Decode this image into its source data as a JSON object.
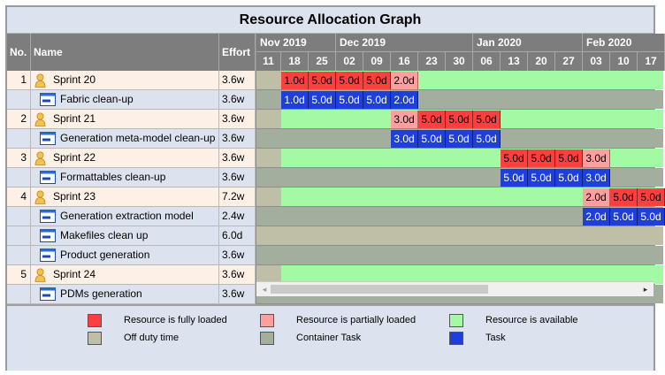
{
  "title": "Resource Allocation Graph",
  "columns": {
    "no": "No.",
    "name": "Name",
    "effort": "Effort"
  },
  "timeline": {
    "months": [
      {
        "label": "Nov 2019",
        "span": 3
      },
      {
        "label": "Dec 2019",
        "span": 5
      },
      {
        "label": "Jan 2020",
        "span": 4
      },
      {
        "label": "Feb 2020",
        "span": 3
      }
    ],
    "weeks": [
      "11",
      "18",
      "25",
      "02",
      "09",
      "16",
      "23",
      "30",
      "06",
      "13",
      "20",
      "27",
      "03",
      "10",
      "17"
    ]
  },
  "colors": {
    "full": "#ff3f3f",
    "partial": "#ff9f9f",
    "available": "#a4faa4",
    "offduty": "#bfbea6",
    "container": "#a3ae9e",
    "task": "#1f3fdb"
  },
  "rows": [
    {
      "no": "1",
      "name": "Sprint 20",
      "effort": "3.6w",
      "kind": "resource",
      "timeline": {
        "offduty_weeks": 1,
        "fill": "available",
        "bars": [
          {
            "week": 1,
            "label": "1.0d",
            "status": "full"
          },
          {
            "week": 2,
            "label": "5.0d",
            "status": "full"
          },
          {
            "week": 3,
            "label": "5.0d",
            "status": "full"
          },
          {
            "week": 4,
            "label": "5.0d",
            "status": "full"
          },
          {
            "week": 5,
            "label": "2.0d",
            "status": "partial"
          }
        ]
      }
    },
    {
      "no": "",
      "name": "Fabric clean-up",
      "effort": "3.6w",
      "kind": "task",
      "timeline": {
        "offduty_weeks": 0,
        "fill": "container",
        "bars": [
          {
            "week": 1,
            "label": "1.0d",
            "status": "task"
          },
          {
            "week": 2,
            "label": "5.0d",
            "status": "task"
          },
          {
            "week": 3,
            "label": "5.0d",
            "status": "task"
          },
          {
            "week": 4,
            "label": "5.0d",
            "status": "task"
          },
          {
            "week": 5,
            "label": "2.0d",
            "status": "task"
          }
        ]
      }
    },
    {
      "no": "2",
      "name": "Sprint 21",
      "effort": "3.6w",
      "kind": "resource",
      "timeline": {
        "offduty_weeks": 1,
        "fill": "available",
        "bars": [
          {
            "week": 5,
            "label": "3.0d",
            "status": "partial"
          },
          {
            "week": 6,
            "label": "5.0d",
            "status": "full"
          },
          {
            "week": 7,
            "label": "5.0d",
            "status": "full"
          },
          {
            "week": 8,
            "label": "5.0d",
            "status": "full"
          }
        ]
      }
    },
    {
      "no": "",
      "name": "Generation meta-model clean-up",
      "effort": "3.6w",
      "kind": "task",
      "timeline": {
        "offduty_weeks": 0,
        "fill": "container",
        "bars": [
          {
            "week": 5,
            "label": "3.0d",
            "status": "task"
          },
          {
            "week": 6,
            "label": "5.0d",
            "status": "task"
          },
          {
            "week": 7,
            "label": "5.0d",
            "status": "task"
          },
          {
            "week": 8,
            "label": "5.0d",
            "status": "task"
          }
        ]
      }
    },
    {
      "no": "3",
      "name": "Sprint 22",
      "effort": "3.6w",
      "kind": "resource",
      "timeline": {
        "offduty_weeks": 1,
        "fill": "available",
        "bars": [
          {
            "week": 9,
            "label": "5.0d",
            "status": "full"
          },
          {
            "week": 10,
            "label": "5.0d",
            "status": "full"
          },
          {
            "week": 11,
            "label": "5.0d",
            "status": "full"
          },
          {
            "week": 12,
            "label": "3.0d",
            "status": "partial"
          }
        ]
      }
    },
    {
      "no": "",
      "name": "Formattables clean-up",
      "effort": "3.6w",
      "kind": "task",
      "timeline": {
        "offduty_weeks": 0,
        "fill": "container",
        "bars": [
          {
            "week": 9,
            "label": "5.0d",
            "status": "task"
          },
          {
            "week": 10,
            "label": "5.0d",
            "status": "task"
          },
          {
            "week": 11,
            "label": "5.0d",
            "status": "task"
          },
          {
            "week": 12,
            "label": "3.0d",
            "status": "task"
          }
        ]
      }
    },
    {
      "no": "4",
      "name": "Sprint 23",
      "effort": "7.2w",
      "kind": "resource",
      "timeline": {
        "offduty_weeks": 1,
        "fill": "available",
        "bars": [
          {
            "week": 12,
            "label": "2.0d",
            "status": "partial"
          },
          {
            "week": 13,
            "label": "5.0d",
            "status": "full"
          },
          {
            "week": 14,
            "label": "5.0d",
            "status": "full"
          }
        ]
      }
    },
    {
      "no": "",
      "name": "Generation extraction model",
      "effort": "2.4w",
      "kind": "task",
      "timeline": {
        "offduty_weeks": 0,
        "fill": "container",
        "bars": [
          {
            "week": 12,
            "label": "2.0d",
            "status": "task"
          },
          {
            "week": 13,
            "label": "5.0d",
            "status": "task"
          },
          {
            "week": 14,
            "label": "5.0d",
            "status": "task"
          }
        ]
      }
    },
    {
      "no": "",
      "name": "Makefiles clean up",
      "effort": "6.0d",
      "kind": "task",
      "timeline": {
        "offduty_weeks": 0,
        "fill": "offduty",
        "bars": []
      }
    },
    {
      "no": "",
      "name": "Product generation",
      "effort": "3.6w",
      "kind": "task",
      "timeline": {
        "offduty_weeks": 0,
        "fill": "container",
        "bars": []
      }
    },
    {
      "no": "5",
      "name": "Sprint 24",
      "effort": "3.6w",
      "kind": "resource",
      "timeline": {
        "offduty_weeks": 1,
        "fill": "available",
        "bars": []
      }
    },
    {
      "no": "",
      "name": "PDMs generation",
      "effort": "3.6w",
      "kind": "task",
      "timeline": {
        "offduty_weeks": 0,
        "fill": "container",
        "bars": []
      }
    }
  ],
  "legend": [
    {
      "label": "Resource is fully loaded",
      "color": "#ff3f3f"
    },
    {
      "label": "Resource is partially loaded",
      "color": "#ff9f9f"
    },
    {
      "label": "Resource is available",
      "color": "#a4faa4"
    },
    {
      "label": "Off duty time",
      "color": "#bfbea6"
    },
    {
      "label": "Container Task",
      "color": "#a3ae9e"
    },
    {
      "label": "Task",
      "color": "#1f3fdb"
    }
  ],
  "scrollbar": {
    "left_arrow": "◂",
    "right_arrow": "▸"
  }
}
